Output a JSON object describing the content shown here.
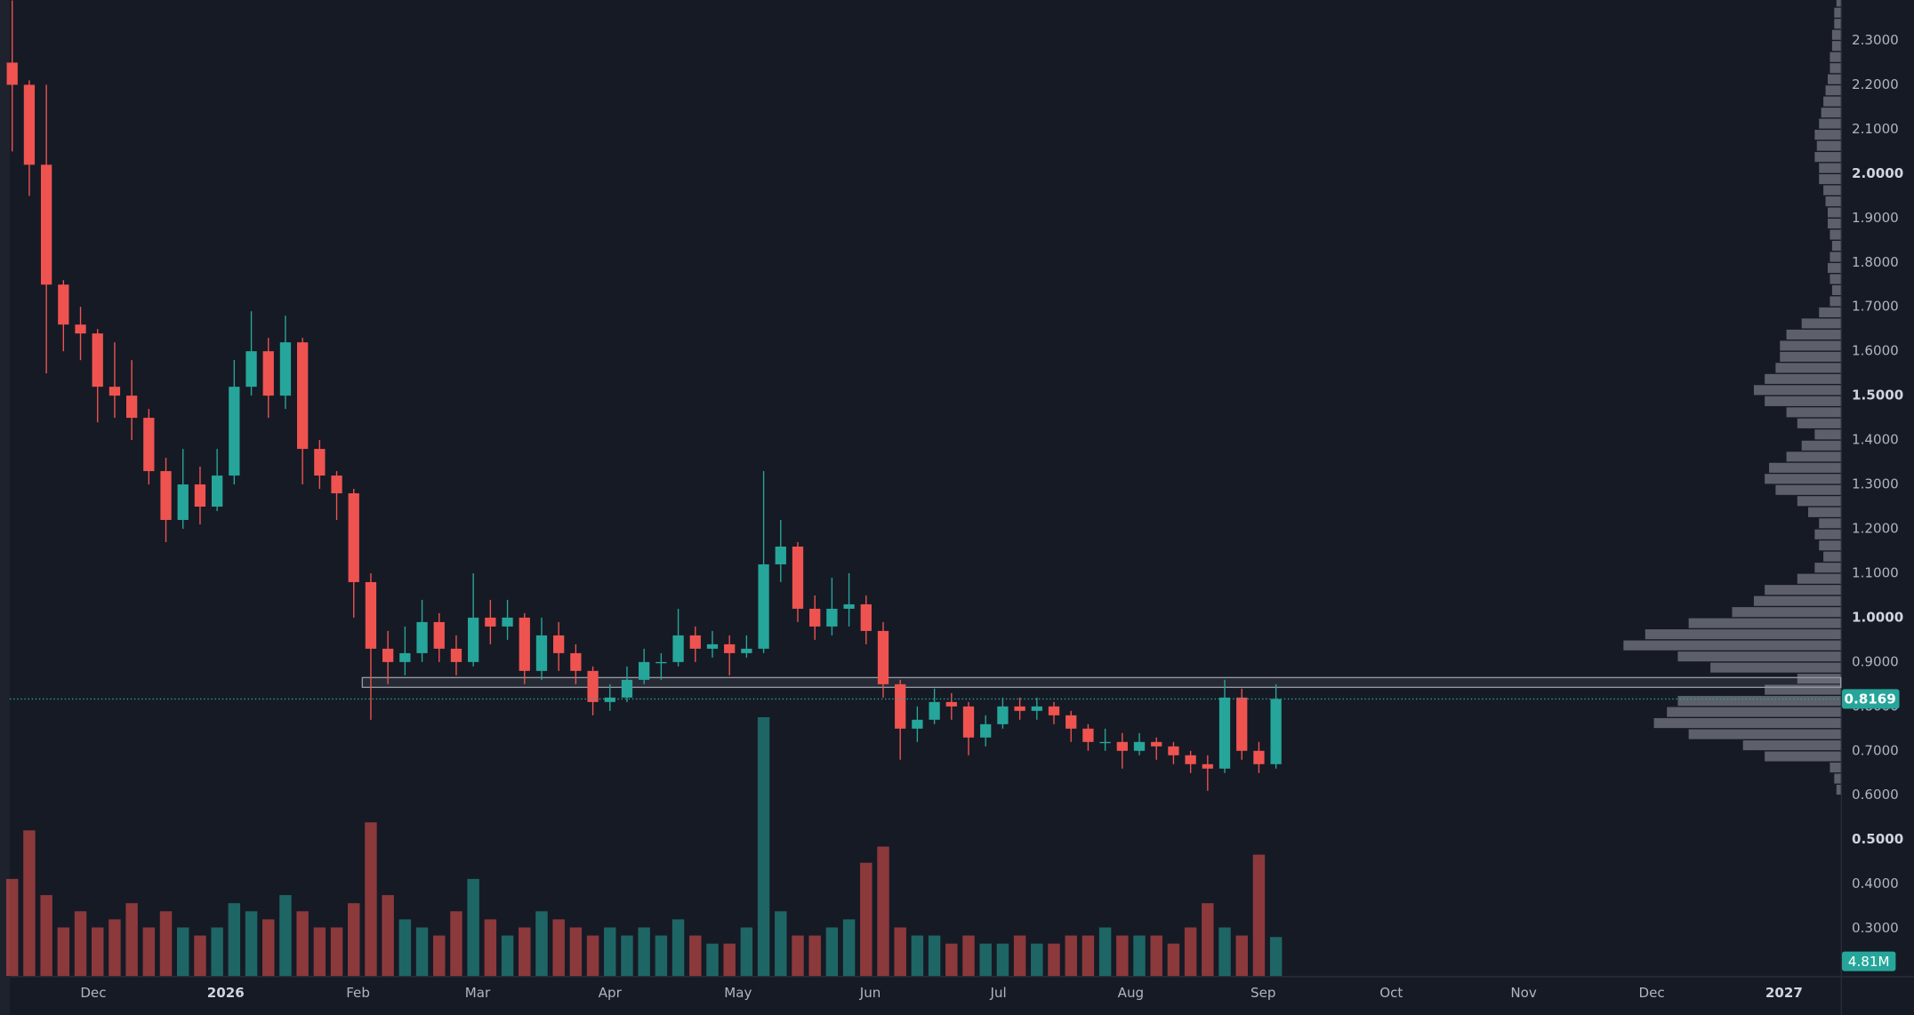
{
  "chart_data": {
    "type": "candlestick",
    "up_color": "#26a69a",
    "down_color": "#ef5350",
    "profile_color": "#6a6d78",
    "zone_color": "#9598a1",
    "xlim": [
      -0.571,
      428.286
    ],
    "ylim": [
      0.193,
      2.391
    ],
    "vlim": [
      0,
      35
    ],
    "profile_xlim": [
      0,
      100
    ],
    "xticks": [
      {
        "value": 19,
        "label": "Dec"
      },
      {
        "value": 50,
        "label": "2026"
      },
      {
        "value": 81,
        "label": "Feb"
      },
      {
        "value": 109,
        "label": "Mar"
      },
      {
        "value": 140,
        "label": "Apr"
      },
      {
        "value": 170,
        "label": "May"
      },
      {
        "value": 201,
        "label": "Jun"
      },
      {
        "value": 231,
        "label": "Jul"
      },
      {
        "value": 262,
        "label": "Aug"
      },
      {
        "value": 293,
        "label": "Sep"
      },
      {
        "value": 323,
        "label": "Oct"
      },
      {
        "value": 354,
        "label": "Nov"
      },
      {
        "value": 384,
        "label": "Dec"
      },
      {
        "value": 415,
        "label": "2027"
      }
    ],
    "yticks": [
      {
        "value": 0.3,
        "label": "0.3000"
      },
      {
        "value": 0.4,
        "label": "0.4000"
      },
      {
        "value": 0.5,
        "label": "0.5000"
      },
      {
        "value": 0.6,
        "label": "0.6000"
      },
      {
        "value": 0.7,
        "label": "0.7000"
      },
      {
        "value": 0.8,
        "label": "0.8000"
      },
      {
        "value": 0.9,
        "label": "0.9000"
      },
      {
        "value": 1.0,
        "label": "1.0000"
      },
      {
        "value": 1.1,
        "label": "1.1000"
      },
      {
        "value": 1.2,
        "label": "1.2000"
      },
      {
        "value": 1.3,
        "label": "1.3000"
      },
      {
        "value": 1.4,
        "label": "1.4000"
      },
      {
        "value": 1.5,
        "label": "1.5000"
      },
      {
        "value": 1.6,
        "label": "1.6000"
      },
      {
        "value": 1.7,
        "label": "1.7000"
      },
      {
        "value": 1.8,
        "label": "1.8000"
      },
      {
        "value": 1.9,
        "label": "1.9000"
      },
      {
        "value": 2.0,
        "label": "2.0000"
      },
      {
        "value": 2.1,
        "label": "2.1000"
      },
      {
        "value": 2.2,
        "label": "2.2000"
      },
      {
        "value": 2.3,
        "label": "2.3000"
      }
    ],
    "x": [
      0,
      4,
      8,
      12,
      16,
      20,
      24,
      28,
      32,
      36,
      40,
      44,
      48,
      52,
      56,
      60,
      64,
      68,
      72,
      76,
      80,
      84,
      88,
      92,
      96,
      100,
      104,
      108,
      112,
      116,
      120,
      124,
      128,
      132,
      136,
      140,
      144,
      148,
      152,
      156,
      160,
      164,
      168,
      172,
      176,
      180,
      184,
      188,
      192,
      196,
      200,
      204,
      208,
      212,
      216,
      220,
      224,
      228,
      232,
      236,
      240,
      244,
      248,
      252,
      256,
      260,
      264,
      268,
      272,
      276,
      280,
      284,
      288,
      292,
      296
    ],
    "ohlc": [
      [
        2.25,
        2.39,
        2.05,
        2.2
      ],
      [
        2.2,
        2.21,
        1.95,
        2.02
      ],
      [
        2.02,
        2.2,
        1.55,
        1.75
      ],
      [
        1.75,
        1.76,
        1.6,
        1.66
      ],
      [
        1.66,
        1.7,
        1.58,
        1.64
      ],
      [
        1.64,
        1.65,
        1.44,
        1.52
      ],
      [
        1.52,
        1.62,
        1.45,
        1.5
      ],
      [
        1.5,
        1.58,
        1.4,
        1.45
      ],
      [
        1.45,
        1.47,
        1.3,
        1.33
      ],
      [
        1.33,
        1.36,
        1.17,
        1.22
      ],
      [
        1.22,
        1.38,
        1.2,
        1.3
      ],
      [
        1.3,
        1.34,
        1.21,
        1.25
      ],
      [
        1.25,
        1.38,
        1.24,
        1.32
      ],
      [
        1.32,
        1.58,
        1.3,
        1.52
      ],
      [
        1.52,
        1.69,
        1.5,
        1.6
      ],
      [
        1.6,
        1.63,
        1.45,
        1.5
      ],
      [
        1.5,
        1.68,
        1.47,
        1.62
      ],
      [
        1.62,
        1.63,
        1.3,
        1.38
      ],
      [
        1.38,
        1.4,
        1.29,
        1.32
      ],
      [
        1.32,
        1.33,
        1.22,
        1.28
      ],
      [
        1.28,
        1.29,
        1.0,
        1.08
      ],
      [
        1.08,
        1.1,
        0.77,
        0.93
      ],
      [
        0.93,
        0.97,
        0.85,
        0.9
      ],
      [
        0.9,
        0.98,
        0.87,
        0.92
      ],
      [
        0.92,
        1.04,
        0.9,
        0.99
      ],
      [
        0.99,
        1.01,
        0.9,
        0.93
      ],
      [
        0.93,
        0.96,
        0.87,
        0.9
      ],
      [
        0.9,
        1.1,
        0.89,
        1.0
      ],
      [
        1.0,
        1.04,
        0.94,
        0.98
      ],
      [
        0.98,
        1.04,
        0.95,
        1.0
      ],
      [
        1.0,
        1.01,
        0.85,
        0.88
      ],
      [
        0.88,
        1.0,
        0.86,
        0.96
      ],
      [
        0.96,
        0.99,
        0.88,
        0.92
      ],
      [
        0.92,
        0.94,
        0.85,
        0.88
      ],
      [
        0.88,
        0.89,
        0.78,
        0.81
      ],
      [
        0.81,
        0.85,
        0.79,
        0.82
      ],
      [
        0.82,
        0.89,
        0.81,
        0.86
      ],
      [
        0.86,
        0.93,
        0.85,
        0.9
      ],
      [
        0.9,
        0.92,
        0.86,
        0.9
      ],
      [
        0.9,
        1.02,
        0.89,
        0.96
      ],
      [
        0.96,
        0.98,
        0.9,
        0.93
      ],
      [
        0.93,
        0.97,
        0.91,
        0.94
      ],
      [
        0.94,
        0.96,
        0.87,
        0.92
      ],
      [
        0.92,
        0.96,
        0.91,
        0.93
      ],
      [
        0.93,
        1.33,
        0.92,
        1.12
      ],
      [
        1.12,
        1.22,
        1.08,
        1.16
      ],
      [
        1.16,
        1.17,
        0.99,
        1.02
      ],
      [
        1.02,
        1.05,
        0.95,
        0.98
      ],
      [
        0.98,
        1.09,
        0.96,
        1.02
      ],
      [
        1.02,
        1.1,
        0.98,
        1.03
      ],
      [
        1.03,
        1.05,
        0.94,
        0.97
      ],
      [
        0.97,
        0.99,
        0.82,
        0.85
      ],
      [
        0.85,
        0.86,
        0.68,
        0.75
      ],
      [
        0.75,
        0.8,
        0.72,
        0.77
      ],
      [
        0.77,
        0.84,
        0.76,
        0.81
      ],
      [
        0.81,
        0.83,
        0.77,
        0.8
      ],
      [
        0.8,
        0.81,
        0.69,
        0.73
      ],
      [
        0.73,
        0.78,
        0.71,
        0.76
      ],
      [
        0.76,
        0.82,
        0.75,
        0.8
      ],
      [
        0.8,
        0.82,
        0.77,
        0.79
      ],
      [
        0.79,
        0.82,
        0.77,
        0.8
      ],
      [
        0.8,
        0.81,
        0.76,
        0.78
      ],
      [
        0.78,
        0.79,
        0.72,
        0.75
      ],
      [
        0.75,
        0.76,
        0.7,
        0.72
      ],
      [
        0.72,
        0.75,
        0.7,
        0.72
      ],
      [
        0.72,
        0.74,
        0.66,
        0.7
      ],
      [
        0.7,
        0.74,
        0.69,
        0.72
      ],
      [
        0.72,
        0.73,
        0.68,
        0.71
      ],
      [
        0.71,
        0.72,
        0.67,
        0.69
      ],
      [
        0.69,
        0.7,
        0.65,
        0.67
      ],
      [
        0.67,
        0.69,
        0.61,
        0.66
      ],
      [
        0.66,
        0.86,
        0.65,
        0.82
      ],
      [
        0.82,
        0.84,
        0.68,
        0.7
      ],
      [
        0.7,
        0.72,
        0.65,
        0.67
      ],
      [
        0.67,
        0.85,
        0.66,
        0.8169
      ]
    ],
    "volumes": [
      12,
      18,
      10,
      6,
      8,
      6,
      7,
      9,
      6,
      8,
      6,
      5,
      6,
      9,
      8,
      7,
      10,
      8,
      6,
      6,
      9,
      19,
      10,
      7,
      6,
      5,
      8,
      12,
      7,
      5,
      6,
      8,
      7,
      6,
      5,
      6,
      5,
      6,
      5,
      7,
      5,
      4,
      4,
      6,
      32,
      8,
      5,
      5,
      6,
      7,
      14,
      16,
      6,
      5,
      5,
      4,
      5,
      4,
      4,
      5,
      4,
      4,
      5,
      5,
      6,
      5,
      5,
      5,
      4,
      6,
      9,
      6,
      5,
      15,
      4.81
    ],
    "last_volume_label": "4.81M",
    "last_price": 0.8169,
    "zone": {
      "from": 82,
      "low": 0.843,
      "high": 0.865
    },
    "profile_prices": [
      0.6,
      0.625,
      0.65,
      0.675,
      0.7,
      0.725,
      0.75,
      0.775,
      0.8,
      0.825,
      0.85,
      0.875,
      0.9,
      0.925,
      0.95,
      0.975,
      1.0,
      1.025,
      1.05,
      1.075,
      1.1,
      1.125,
      1.15,
      1.175,
      1.2,
      1.225,
      1.25,
      1.275,
      1.3,
      1.325,
      1.35,
      1.375,
      1.4,
      1.425,
      1.45,
      1.475,
      1.5,
      1.525,
      1.55,
      1.575,
      1.6,
      1.625,
      1.65,
      1.675,
      1.7,
      1.725,
      1.75,
      1.775,
      1.8,
      1.825,
      1.85,
      1.875,
      1.9,
      1.925,
      1.95,
      1.975,
      2.0,
      2.025,
      2.05,
      2.075,
      2.1,
      2.125,
      2.15,
      2.175,
      2.2,
      2.225,
      2.25,
      2.275,
      2.3,
      2.325,
      2.35,
      2.375
    ],
    "profile_values": [
      2,
      3,
      5,
      35,
      45,
      70,
      86,
      80,
      75,
      35,
      20,
      60,
      75,
      100,
      90,
      70,
      50,
      40,
      35,
      20,
      12,
      8,
      10,
      12,
      10,
      15,
      20,
      30,
      35,
      33,
      25,
      18,
      12,
      20,
      25,
      35,
      40,
      35,
      30,
      28,
      28,
      25,
      18,
      10,
      5,
      4,
      5,
      6,
      5,
      4,
      5,
      6,
      6,
      7,
      8,
      10,
      10,
      12,
      11,
      12,
      10,
      9,
      8,
      7,
      6,
      5,
      5,
      4,
      4,
      3,
      3,
      2
    ]
  }
}
